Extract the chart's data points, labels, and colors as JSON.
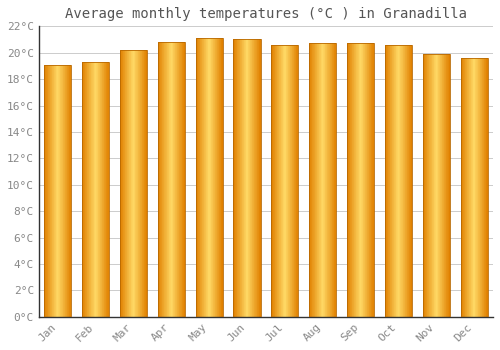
{
  "title": "Average monthly temperatures (°C ) in Granadilla",
  "months": [
    "Jan",
    "Feb",
    "Mar",
    "Apr",
    "May",
    "Jun",
    "Jul",
    "Aug",
    "Sep",
    "Oct",
    "Nov",
    "Dec"
  ],
  "temperatures": [
    19.1,
    19.3,
    20.2,
    20.8,
    21.1,
    21.0,
    20.6,
    20.7,
    20.7,
    20.6,
    19.9,
    19.6
  ],
  "bar_color_center": "#FFD966",
  "bar_color_edge": "#E08000",
  "ylim": [
    0,
    22
  ],
  "ytick_step": 2,
  "background_color": "#ffffff",
  "grid_color": "#cccccc",
  "title_fontsize": 10,
  "tick_fontsize": 8,
  "font_family": "monospace",
  "label_color": "#888888",
  "spine_color": "#333333"
}
